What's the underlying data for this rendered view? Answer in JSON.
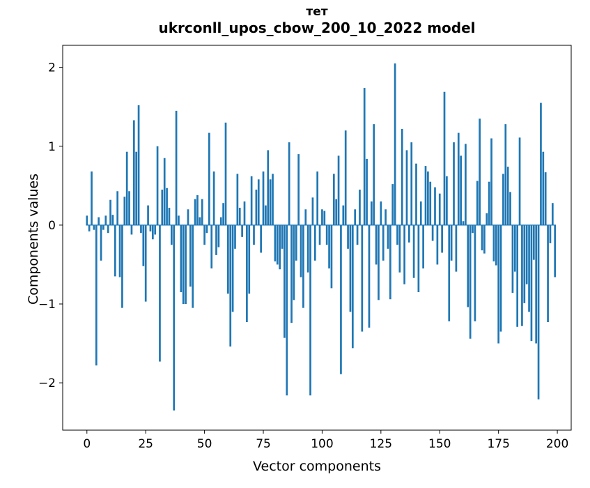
{
  "figure": {
    "background": "#ffffff"
  },
  "chart_data": {
    "type": "bar",
    "title": "тет",
    "subtitle": "ukrconll_upos_cbow_200_10_2022 model",
    "xlabel": "Vector components",
    "ylabel": "Components values",
    "bar_color": "#1f77b4",
    "axis_color": "#000000",
    "x_ticks": [
      0,
      25,
      50,
      75,
      100,
      125,
      150,
      175,
      200
    ],
    "y_ticks": [
      -2,
      -1,
      0,
      1,
      2
    ],
    "xlim": [
      -10.3,
      205.9
    ],
    "ylim": [
      -2.6,
      2.28
    ],
    "grid": false,
    "legend": "none",
    "values": [
      0.12,
      -0.08,
      0.68,
      -0.06,
      -1.78,
      0.1,
      -0.45,
      -0.06,
      0.12,
      -0.1,
      0.32,
      0.13,
      -0.65,
      0.43,
      -0.66,
      -1.05,
      0.36,
      0.93,
      0.43,
      -0.12,
      1.33,
      0.93,
      1.52,
      -0.1,
      -0.52,
      -0.97,
      0.25,
      -0.08,
      -0.18,
      -0.12,
      1.0,
      -1.73,
      0.45,
      0.85,
      0.47,
      0.22,
      -0.25,
      -2.35,
      1.45,
      0.12,
      -0.85,
      -1.0,
      -1.0,
      0.2,
      -0.78,
      -1.05,
      0.33,
      0.38,
      0.1,
      0.33,
      -0.25,
      -0.1,
      1.17,
      -0.55,
      0.68,
      -0.38,
      -0.28,
      0.1,
      0.28,
      1.3,
      -0.87,
      -1.54,
      -1.1,
      -0.3,
      0.65,
      0.22,
      -0.15,
      0.3,
      -1.23,
      -0.87,
      0.62,
      -0.25,
      0.45,
      0.58,
      -0.35,
      0.68,
      0.25,
      0.95,
      0.58,
      0.65,
      -0.46,
      -0.5,
      -0.56,
      -0.3,
      -1.43,
      -2.16,
      1.05,
      -1.24,
      -0.95,
      -0.45,
      0.9,
      -0.66,
      -1.05,
      0.2,
      -0.6,
      -2.16,
      0.35,
      -0.45,
      0.68,
      -0.25,
      0.2,
      0.18,
      -0.25,
      -0.55,
      -0.8,
      0.65,
      0.33,
      0.88,
      -1.89,
      0.25,
      1.2,
      -0.3,
      -1.1,
      -1.56,
      0.2,
      -0.25,
      0.45,
      -1.35,
      1.74,
      0.84,
      -1.3,
      0.3,
      1.28,
      -0.5,
      -0.95,
      0.3,
      -0.45,
      0.2,
      -0.3,
      -0.94,
      0.52,
      2.05,
      -0.25,
      -0.6,
      1.22,
      -0.75,
      0.95,
      -0.22,
      1.05,
      -0.67,
      0.78,
      -0.85,
      0.3,
      -0.55,
      0.75,
      0.68,
      0.55,
      -0.2,
      0.48,
      -0.5,
      0.4,
      -0.35,
      1.69,
      0.62,
      -1.22,
      -0.45,
      1.05,
      -0.59,
      1.17,
      0.88,
      0.05,
      1.03,
      -1.04,
      -1.44,
      -0.1,
      -1.22,
      0.56,
      1.35,
      -0.32,
      -0.36,
      0.15,
      0.55,
      1.1,
      -0.46,
      -0.51,
      -1.5,
      -1.35,
      0.65,
      1.28,
      0.74,
      0.42,
      -0.86,
      -0.59,
      -1.29,
      1.11,
      -1.28,
      -0.99,
      -0.75,
      -1.1,
      -1.47,
      -0.44,
      -1.5,
      -2.21,
      1.55,
      0.93,
      0.67,
      -1.23,
      -0.23,
      0.28,
      -0.66
    ]
  }
}
